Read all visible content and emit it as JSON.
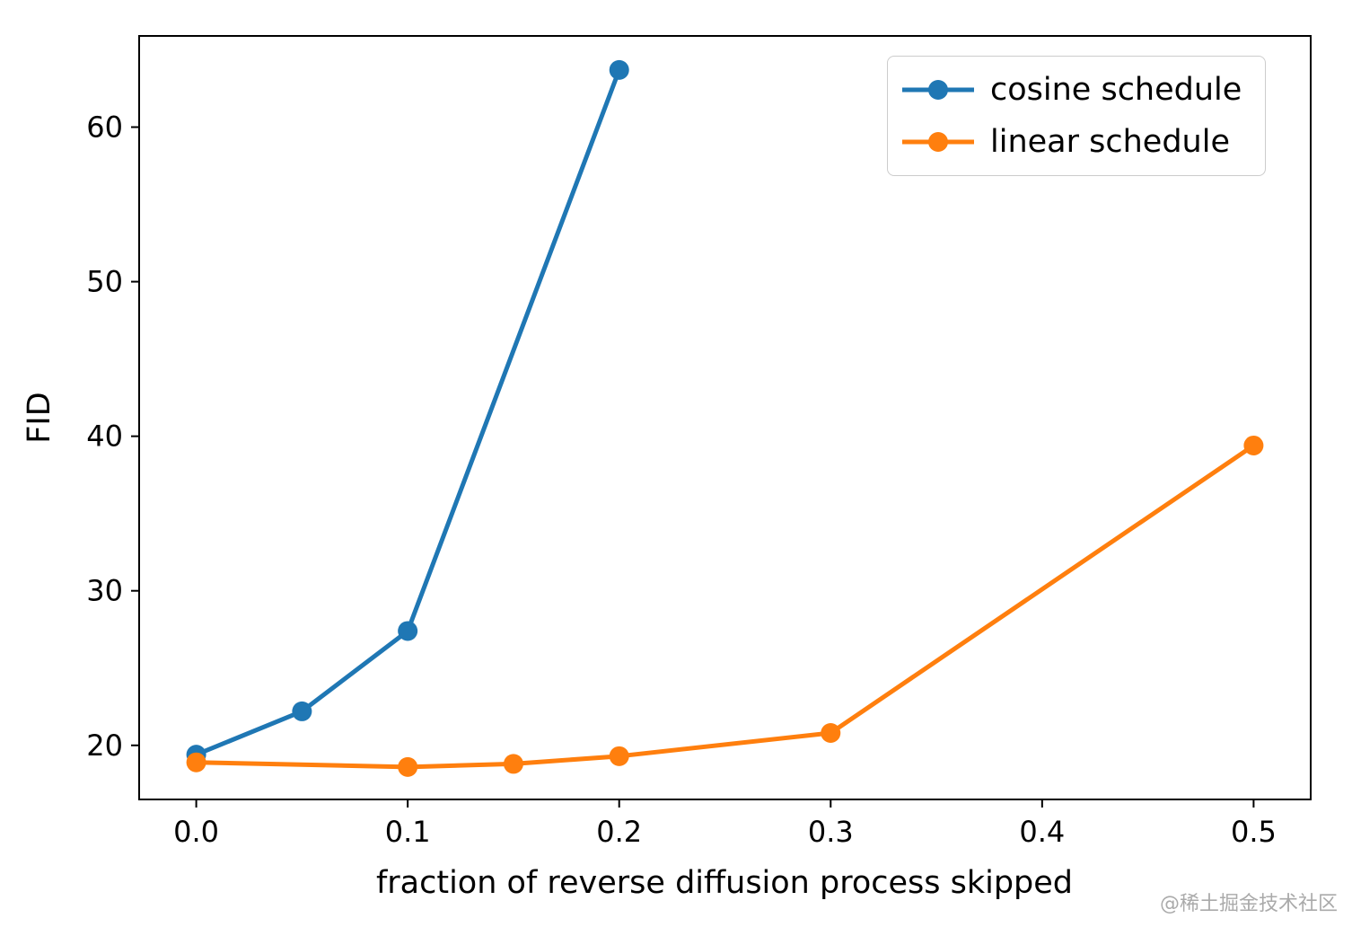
{
  "watermark": "@稀土掘金技术社区",
  "chart_data": {
    "type": "line",
    "title": "",
    "xlabel": "fraction of reverse diffusion process skipped",
    "ylabel": "FID",
    "xlim": [
      -0.027,
      0.527
    ],
    "ylim": [
      16.5,
      65.9
    ],
    "xticks": [
      0.0,
      0.1,
      0.2,
      0.3,
      0.4,
      0.5
    ],
    "xtick_labels": [
      "0.0",
      "0.1",
      "0.2",
      "0.3",
      "0.4",
      "0.5"
    ],
    "yticks": [
      20,
      30,
      40,
      50,
      60
    ],
    "ytick_labels": [
      "20",
      "30",
      "40",
      "50",
      "60"
    ],
    "grid": false,
    "legend_position": "upper right",
    "series": [
      {
        "name": "cosine schedule",
        "color": "#1f77b4",
        "marker": "circle",
        "x": [
          0.0,
          0.05,
          0.1,
          0.2
        ],
        "y": [
          19.4,
          22.2,
          27.4,
          63.7
        ]
      },
      {
        "name": "linear schedule",
        "color": "#ff7f0e",
        "marker": "circle",
        "x": [
          0.0,
          0.1,
          0.15,
          0.2,
          0.3,
          0.5
        ],
        "y": [
          18.9,
          18.6,
          18.8,
          19.3,
          20.8,
          39.4
        ]
      }
    ]
  }
}
